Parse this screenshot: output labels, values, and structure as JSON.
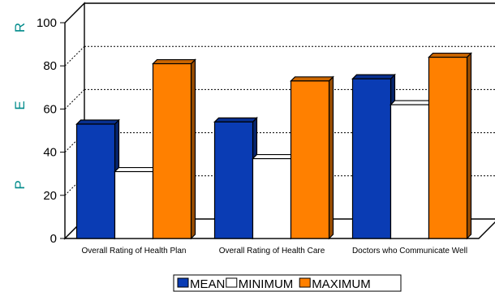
{
  "chart_data": {
    "type": "bar",
    "title": "",
    "xlabel": "",
    "ylabel": "P E R",
    "ylabel_letters": [
      "P",
      "E",
      "R"
    ],
    "ylim": [
      0,
      100
    ],
    "yticks": [
      0,
      20,
      40,
      60,
      80,
      100
    ],
    "grid": true,
    "style": "3d-clustered",
    "legend_position": "bottom",
    "categories": [
      "Overall Rating of Health Plan",
      "Overall Rating of Health Care",
      "Doctors who Communicate Well"
    ],
    "series": [
      {
        "name": "MEAN",
        "values": [
          53,
          54,
          74
        ],
        "color": "#0a3cb4"
      },
      {
        "name": "MINIMUM",
        "values": [
          31,
          37,
          62
        ],
        "color": "#ffffff"
      },
      {
        "name": "MAXIMUM",
        "values": [
          81,
          73,
          84
        ],
        "color": "#ff8000"
      }
    ]
  }
}
